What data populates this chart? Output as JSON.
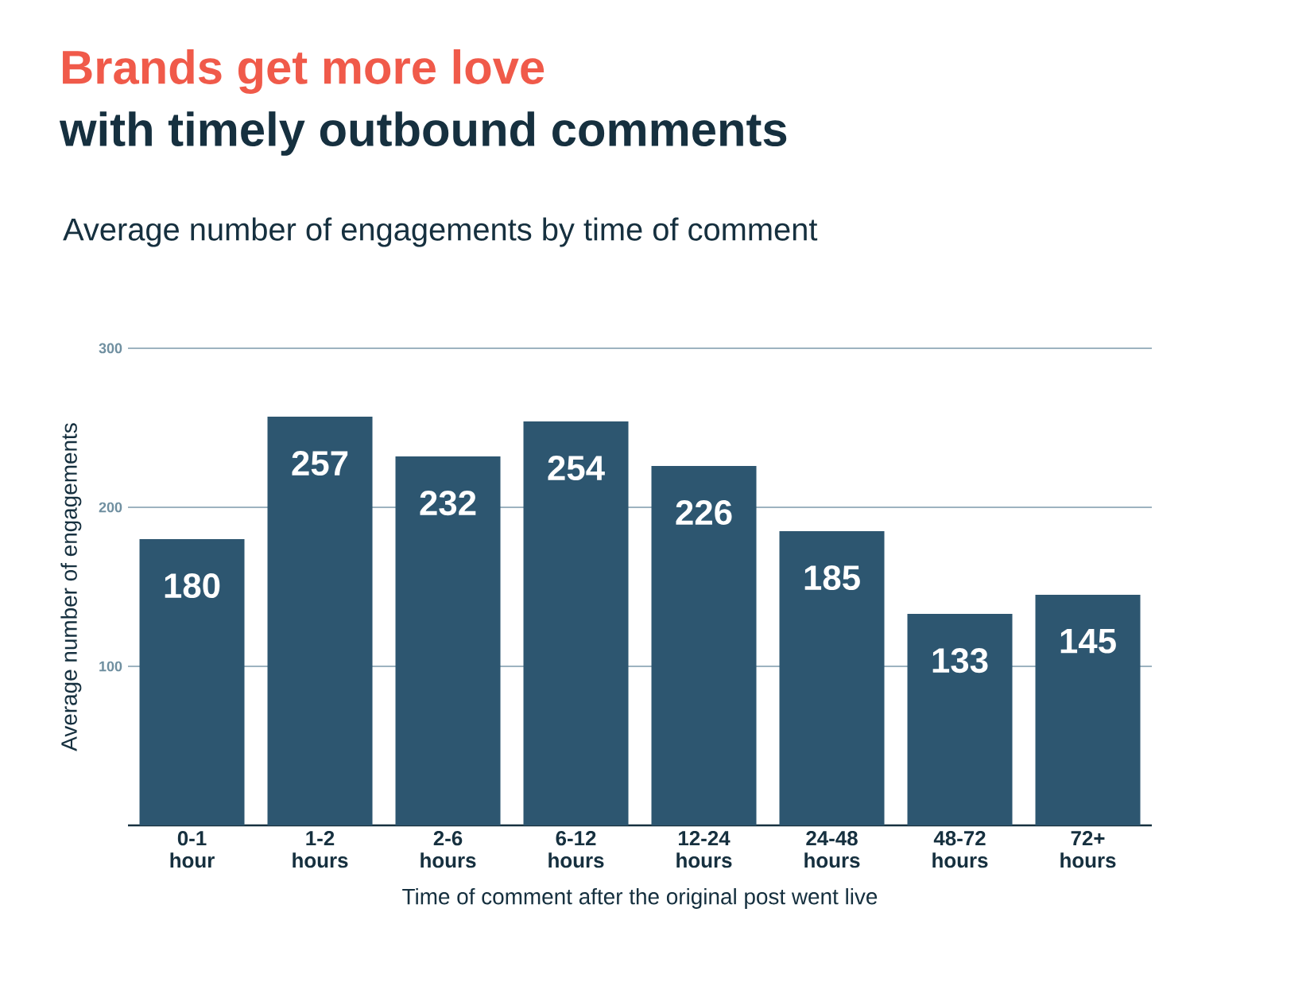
{
  "chart_data": {
    "type": "bar",
    "title": "Brands get more love",
    "subtitle": "with timely outbound comments",
    "annotations": [
      "Average number of engagements by time of comment"
    ],
    "xlabel": "Time of comment after the original post went live",
    "ylabel": "Average number of engagements",
    "categories": [
      "0-1 hour",
      "1-2 hours",
      "2-6 hours",
      "6-12 hours",
      "12-24 hours",
      "24-48 hours",
      "48-72 hours",
      "72+ hours"
    ],
    "values": [
      180,
      257,
      232,
      254,
      226,
      185,
      133,
      145
    ],
    "color": "#2d5670",
    "ylim": [
      0,
      300
    ],
    "yticks": [
      100,
      200,
      300
    ],
    "grid": "y",
    "data_labels": true
  }
}
